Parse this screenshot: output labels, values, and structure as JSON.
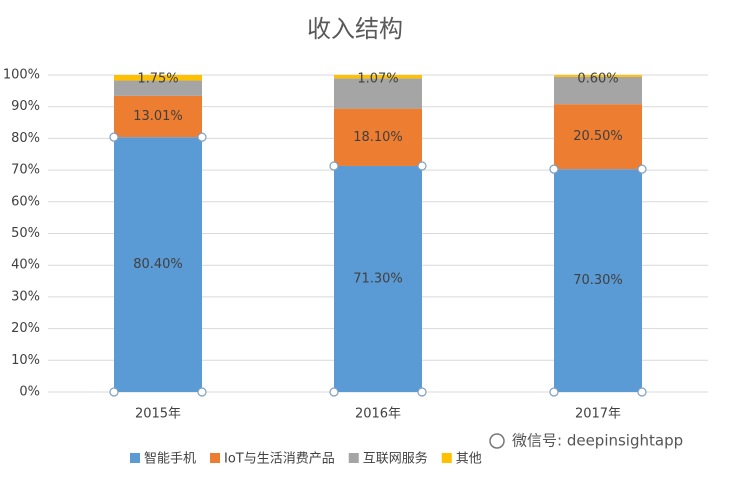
{
  "chart_data": {
    "type": "stacked_bar",
    "title": "收入结构",
    "categories": [
      "2015年",
      "2016年",
      "2017年"
    ],
    "series": [
      {
        "name": "智能手机",
        "color": "#5b9bd5",
        "values": [
          80.4,
          71.3,
          70.3
        ],
        "value_labels": [
          "80.40%",
          "71.30%",
          "70.30%"
        ]
      },
      {
        "name": "IoT与生活消费产品",
        "color": "#ed7d31",
        "values": [
          13.01,
          18.1,
          20.5
        ],
        "value_labels": [
          "13.01%",
          "18.10%",
          "20.50%"
        ]
      },
      {
        "name": "互联网服务",
        "color": "#a5a5a5",
        "values": [
          4.84,
          9.53,
          8.6
        ]
      },
      {
        "name": "其他",
        "color": "#ffc000",
        "values": [
          1.75,
          1.07,
          0.6
        ],
        "value_labels": [
          "1.75%",
          "1.07%",
          "0.60%"
        ]
      }
    ],
    "ylim": [
      0,
      100
    ],
    "yticks": [
      {
        "value": 0,
        "label": "0%"
      },
      {
        "value": 10,
        "label": "10%"
      },
      {
        "value": 20,
        "label": "20%"
      },
      {
        "value": 30,
        "label": "30%"
      },
      {
        "value": 40,
        "label": "40%"
      },
      {
        "value": 50,
        "label": "50%"
      },
      {
        "value": 60,
        "label": "60%"
      },
      {
        "value": 70,
        "label": "70%"
      },
      {
        "value": 80,
        "label": "80%"
      },
      {
        "value": 90,
        "label": "90%"
      },
      {
        "value": 100,
        "label": "100%"
      }
    ],
    "grid": true,
    "watermark": "微信号: deepinsightapp"
  }
}
